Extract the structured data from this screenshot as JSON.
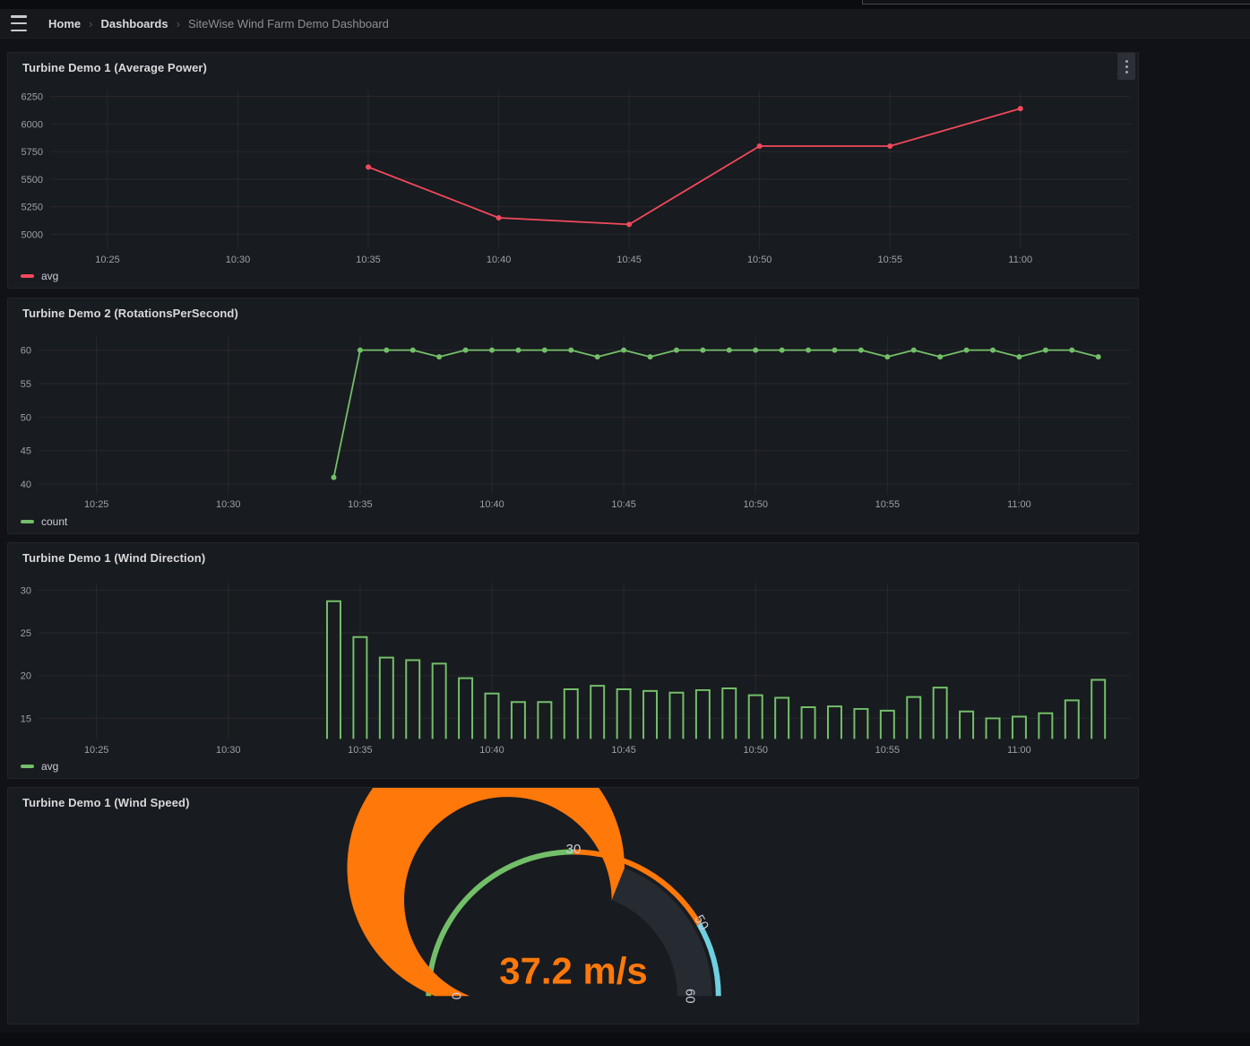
{
  "nav": {
    "separator": "›",
    "breadcrumbs": [
      "Home",
      "Dashboards",
      "SiteWise Wind Farm Demo Dashboard"
    ]
  },
  "colors": {
    "page_bg": "#111217",
    "panel_bg": "#181b1f",
    "grid": "rgba(204,204,220,0.08)",
    "tick_text": "#9da0a7",
    "red": "#F2495C",
    "green": "#73BF69",
    "orange": "#FF780A",
    "cyan": "#6ED0E0"
  },
  "chart_data": [
    {
      "type": "line",
      "title": "Turbine Demo 1 (Average Power)",
      "legend": "avg",
      "color": "#F2495C",
      "x_domain": [
        22.8,
        64.2
      ],
      "y_domain": [
        4871,
        6306
      ],
      "y_ticks": [
        5000,
        5250,
        5500,
        5750,
        6000,
        6250
      ],
      "x_ticks": [
        "10:25",
        "10:30",
        "10:35",
        "10:40",
        "10:45",
        "10:50",
        "10:55",
        "11:00"
      ],
      "times": [
        "10:35",
        "10:40",
        "10:45",
        "10:50",
        "10:55",
        "11:00"
      ],
      "values": [
        5610,
        5150,
        5090,
        5800,
        5800,
        6140
      ]
    },
    {
      "type": "line",
      "title": "Turbine Demo 2 (RotationsPerSecond)",
      "legend": "count",
      "color": "#73BF69",
      "x_domain": [
        22.8,
        64.2
      ],
      "y_domain": [
        38.5,
        62.0
      ],
      "y_ticks": [
        40,
        45,
        50,
        55,
        60
      ],
      "x_ticks": [
        "10:25",
        "10:30",
        "10:35",
        "10:40",
        "10:45",
        "10:50",
        "10:55",
        "11:00"
      ],
      "times": [
        "10:34",
        "10:35",
        "10:36",
        "10:37",
        "10:38",
        "10:39",
        "10:40",
        "10:41",
        "10:42",
        "10:43",
        "10:44",
        "10:45",
        "10:46",
        "10:47",
        "10:48",
        "10:49",
        "10:50",
        "10:51",
        "10:52",
        "10:53",
        "10:54",
        "10:55",
        "10:56",
        "10:57",
        "10:58",
        "10:59",
        "11:00",
        "11:01",
        "11:02",
        "11:03"
      ],
      "values": [
        41,
        60,
        60,
        60,
        59,
        60,
        60,
        60,
        60,
        60,
        59,
        60,
        59,
        60,
        60,
        60,
        60,
        60,
        60,
        60,
        60,
        59,
        60,
        59,
        60,
        60,
        59,
        60,
        60,
        59
      ]
    },
    {
      "type": "bar",
      "title": "Turbine Demo 1 (Wind Direction)",
      "legend": "avg",
      "color": "#73BF69",
      "x_domain": [
        22.8,
        64.2
      ],
      "y_domain": [
        12.6,
        30.8
      ],
      "y_ticks": [
        15,
        20,
        25,
        30
      ],
      "x_ticks": [
        "10:25",
        "10:30",
        "10:35",
        "10:40",
        "10:45",
        "10:50",
        "10:55",
        "11:00"
      ],
      "times": [
        "10:34",
        "10:35",
        "10:36",
        "10:37",
        "10:38",
        "10:39",
        "10:40",
        "10:41",
        "10:42",
        "10:43",
        "10:44",
        "10:45",
        "10:46",
        "10:47",
        "10:48",
        "10:49",
        "10:50",
        "10:51",
        "10:52",
        "10:53",
        "10:54",
        "10:55",
        "10:56",
        "10:57",
        "10:58",
        "10:59",
        "11:00",
        "11:01",
        "11:02",
        "11:03"
      ],
      "values": [
        28.7,
        24.5,
        22.1,
        21.8,
        21.4,
        19.7,
        17.9,
        16.9,
        16.9,
        18.4,
        18.8,
        18.4,
        18.2,
        18.0,
        18.3,
        18.5,
        17.7,
        17.4,
        16.3,
        16.4,
        16.1,
        15.9,
        17.5,
        18.6,
        15.8,
        15.0,
        15.2,
        15.6,
        17.1,
        19.5
      ]
    },
    {
      "type": "gauge",
      "title": "Turbine Demo 1 (Wind Speed)",
      "value": 37.2,
      "value_text": "37.2 m/s",
      "min": 0,
      "max": 60,
      "bar_color": "#FF780A",
      "track_color": "#262a31",
      "value_color": "#FF780A",
      "label_color": "#ccccdc",
      "thresholds": [
        {
          "from": 0,
          "to": 30,
          "color": "#73BF69"
        },
        {
          "from": 30,
          "to": 50,
          "color": "#FF780A"
        },
        {
          "from": 50,
          "to": 60,
          "color": "#6ED0E0"
        }
      ],
      "labels": [
        {
          "value": 0,
          "text": "0"
        },
        {
          "value": 30,
          "text": "30"
        },
        {
          "value": 50,
          "text": "50"
        },
        {
          "value": 60,
          "text": "60"
        }
      ]
    }
  ]
}
